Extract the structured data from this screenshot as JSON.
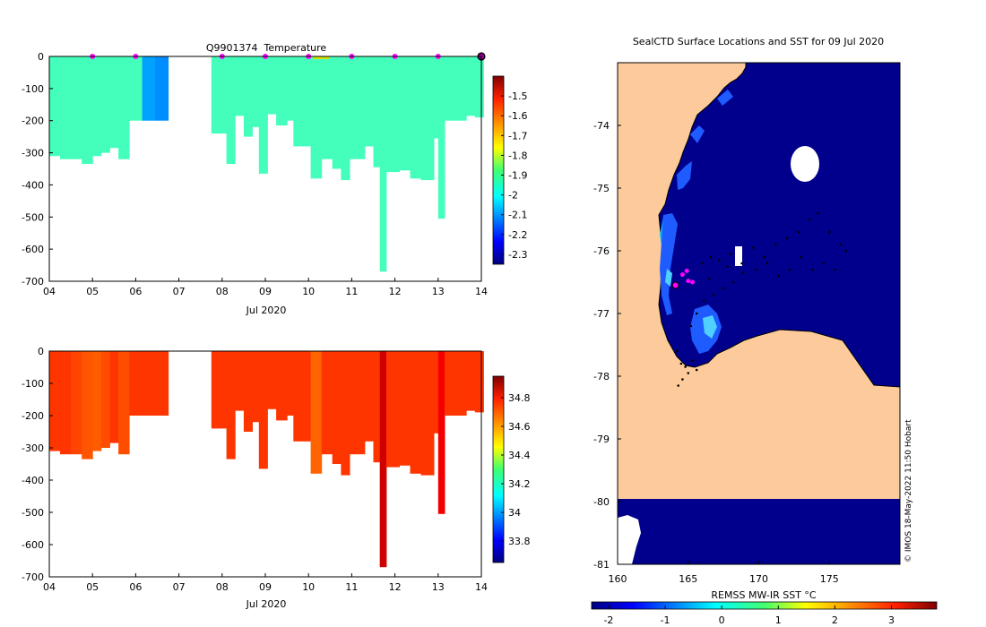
{
  "chart_data": [
    {
      "type": "heatmap",
      "title": "Q9901374  Temperature",
      "xlabel": "Jul 2020",
      "ylabel": "",
      "x_tick_labels": [
        "04",
        "05",
        "06",
        "07",
        "08",
        "09",
        "10",
        "11",
        "12",
        "13",
        "14"
      ],
      "xlim": [
        4,
        14
      ],
      "y_ticks": [
        0,
        -100,
        -200,
        -300,
        -400,
        -500,
        -600,
        -700
      ],
      "ylim": [
        -700,
        0
      ],
      "colorbar_ticks": [
        -1.5,
        -1.6,
        -1.7,
        -1.8,
        -1.9,
        -2,
        -2.1,
        -2.2,
        -2.3
      ],
      "colorbar_range": [
        -2.35,
        -1.4
      ],
      "surface_markers": [
        5,
        6,
        8,
        9,
        10,
        11,
        12,
        13
      ],
      "latest_profile_day": 14,
      "base_value": -1.93,
      "profiles": [
        {
          "day": 4.0,
          "depth": 310
        },
        {
          "day": 4.25,
          "depth": 320
        },
        {
          "day": 4.5,
          "depth": 320
        },
        {
          "day": 4.75,
          "depth": 335
        },
        {
          "day": 5.0,
          "depth": 310
        },
        {
          "day": 5.2,
          "depth": 300
        },
        {
          "day": 5.4,
          "depth": 285
        },
        {
          "day": 5.6,
          "depth": 320
        },
        {
          "day": 5.85,
          "depth": 200
        },
        {
          "day": 6.15,
          "depth": 200,
          "value": -2.08
        },
        {
          "day": 6.45,
          "depth": 200,
          "value": -2.1
        },
        {
          "day": 7.75,
          "depth": 240
        },
        {
          "day": 8.1,
          "depth": 335
        },
        {
          "day": 8.3,
          "depth": 185
        },
        {
          "day": 8.5,
          "depth": 250
        },
        {
          "day": 8.7,
          "depth": 220
        },
        {
          "day": 8.85,
          "depth": 365
        },
        {
          "day": 9.05,
          "depth": 180
        },
        {
          "day": 9.25,
          "depth": 215
        },
        {
          "day": 9.5,
          "depth": 200
        },
        {
          "day": 9.65,
          "depth": 280
        },
        {
          "day": 9.9,
          "depth": 280
        },
        {
          "day": 10.05,
          "depth": 380
        },
        {
          "day": 10.3,
          "depth": 320
        },
        {
          "day": 10.55,
          "depth": 350
        },
        {
          "day": 10.75,
          "depth": 385
        },
        {
          "day": 10.95,
          "depth": 320
        },
        {
          "day": 11.3,
          "depth": 280
        },
        {
          "day": 11.5,
          "depth": 345
        },
        {
          "day": 11.65,
          "depth": 670
        },
        {
          "day": 11.8,
          "depth": 360
        },
        {
          "day": 12.1,
          "depth": 355
        },
        {
          "day": 12.35,
          "depth": 380
        },
        {
          "day": 12.6,
          "depth": 385
        },
        {
          "day": 12.9,
          "depth": 255
        },
        {
          "day": 13.0,
          "depth": 505
        },
        {
          "day": 13.15,
          "depth": 200
        },
        {
          "day": 13.45,
          "depth": 200
        },
        {
          "day": 13.65,
          "depth": 185
        },
        {
          "day": 13.85,
          "depth": 190
        }
      ]
    },
    {
      "type": "heatmap",
      "title": "",
      "xlabel": "Jul 2020",
      "ylabel": "",
      "x_tick_labels": [
        "04",
        "05",
        "06",
        "07",
        "08",
        "09",
        "10",
        "11",
        "12",
        "13",
        "14"
      ],
      "xlim": [
        4,
        14
      ],
      "y_ticks": [
        0,
        -100,
        -200,
        -300,
        -400,
        -500,
        -600,
        -700
      ],
      "ylim": [
        -700,
        0
      ],
      "colorbar_ticks": [
        34.8,
        34.6,
        34.4,
        34.2,
        34,
        33.8
      ],
      "colorbar_range": [
        33.65,
        34.95
      ],
      "base_value": 34.72,
      "profiles": [
        {
          "day": 4.0,
          "depth": 310
        },
        {
          "day": 4.25,
          "depth": 320
        },
        {
          "day": 4.5,
          "depth": 320,
          "value": 34.7
        },
        {
          "day": 4.75,
          "depth": 335,
          "value": 34.68
        },
        {
          "day": 5.0,
          "depth": 310,
          "value": 34.67
        },
        {
          "day": 5.2,
          "depth": 300,
          "value": 34.69
        },
        {
          "day": 5.4,
          "depth": 285
        },
        {
          "day": 5.6,
          "depth": 320,
          "value": 34.69
        },
        {
          "day": 5.85,
          "depth": 200
        },
        {
          "day": 6.15,
          "depth": 200
        },
        {
          "day": 6.45,
          "depth": 200
        },
        {
          "day": 7.75,
          "depth": 240
        },
        {
          "day": 8.1,
          "depth": 335
        },
        {
          "day": 8.3,
          "depth": 185
        },
        {
          "day": 8.5,
          "depth": 250
        },
        {
          "day": 8.7,
          "depth": 220
        },
        {
          "day": 8.85,
          "depth": 365
        },
        {
          "day": 9.05,
          "depth": 180
        },
        {
          "day": 9.25,
          "depth": 215
        },
        {
          "day": 9.5,
          "depth": 200
        },
        {
          "day": 9.65,
          "depth": 280
        },
        {
          "day": 9.9,
          "depth": 280
        },
        {
          "day": 10.05,
          "depth": 380,
          "value": 34.66
        },
        {
          "day": 10.3,
          "depth": 320
        },
        {
          "day": 10.55,
          "depth": 350
        },
        {
          "day": 10.75,
          "depth": 385
        },
        {
          "day": 10.95,
          "depth": 320
        },
        {
          "day": 11.3,
          "depth": 280
        },
        {
          "day": 11.5,
          "depth": 345
        },
        {
          "day": 11.65,
          "depth": 670,
          "value": 34.85
        },
        {
          "day": 11.8,
          "depth": 360
        },
        {
          "day": 12.1,
          "depth": 355
        },
        {
          "day": 12.35,
          "depth": 380
        },
        {
          "day": 12.6,
          "depth": 385
        },
        {
          "day": 12.9,
          "depth": 255
        },
        {
          "day": 13.0,
          "depth": 505,
          "value": 34.8
        },
        {
          "day": 13.15,
          "depth": 200
        },
        {
          "day": 13.45,
          "depth": 200
        },
        {
          "day": 13.65,
          "depth": 185
        },
        {
          "day": 13.85,
          "depth": 190
        }
      ]
    },
    {
      "type": "heatmap",
      "title": "SealCTD Surface Locations and SST for 09 Jul 2020",
      "xlabel": "",
      "ylabel": "",
      "x_tick_labels": [
        "160",
        "165",
        "170",
        "175"
      ],
      "xlim": [
        160,
        180
      ],
      "y_tick_labels": [
        "-74",
        "-75",
        "-76",
        "-77",
        "-78",
        "-79",
        "-80",
        "-81"
      ],
      "ylim": [
        -81,
        -73
      ],
      "colorbar_label": "REMSS MW-IR SST °C",
      "colorbar_ticks": [
        -2,
        -1,
        0,
        1,
        2,
        3
      ],
      "colorbar_range": [
        -2.3,
        3.8
      ],
      "watermark": "© IMOS 18-May-2022 11:50 Hobart",
      "magenta_positions": [
        [
          164.1,
          -76.55
        ],
        [
          164.6,
          -76.38
        ],
        [
          164.9,
          -76.32
        ],
        [
          165.0,
          -76.48
        ],
        [
          165.3,
          -76.5
        ]
      ],
      "track_points": [
        [
          164.2,
          -77.6
        ],
        [
          164.5,
          -77.8
        ],
        [
          164.8,
          -77.85
        ],
        [
          165.3,
          -77.75
        ],
        [
          165.6,
          -77.9
        ],
        [
          165.0,
          -77.95
        ],
        [
          164.6,
          -78.05
        ],
        [
          164.3,
          -78.15
        ],
        [
          166.0,
          -76.2
        ],
        [
          166.6,
          -76.1
        ],
        [
          167.2,
          -76.15
        ],
        [
          168.0,
          -76.05
        ],
        [
          168.8,
          -76.2
        ],
        [
          169.6,
          -75.95
        ],
        [
          170.4,
          -76.1
        ],
        [
          171.2,
          -75.9
        ],
        [
          172.0,
          -75.8
        ],
        [
          172.8,
          -75.7
        ],
        [
          173.6,
          -75.5
        ],
        [
          174.2,
          -75.4
        ],
        [
          175.0,
          -75.7
        ],
        [
          175.8,
          -75.9
        ],
        [
          176.2,
          -76.0
        ],
        [
          175.4,
          -76.3
        ],
        [
          174.6,
          -76.2
        ],
        [
          173.8,
          -76.3
        ],
        [
          173.0,
          -76.1
        ],
        [
          172.2,
          -76.3
        ],
        [
          171.4,
          -76.4
        ],
        [
          170.6,
          -76.2
        ],
        [
          169.8,
          -76.3
        ],
        [
          168.9,
          -76.35
        ],
        [
          168.2,
          -76.5
        ],
        [
          167.5,
          -76.6
        ],
        [
          166.8,
          -76.7
        ],
        [
          166.1,
          -76.8
        ],
        [
          165.6,
          -77.0
        ],
        [
          165.2,
          -77.2
        ],
        [
          166.5,
          -76.45
        ],
        [
          167.8,
          -76.25
        ]
      ]
    }
  ]
}
